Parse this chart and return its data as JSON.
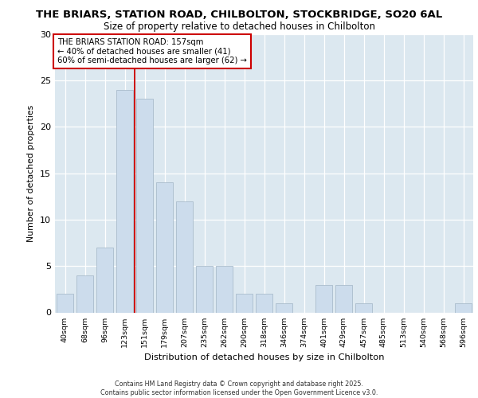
{
  "title_line1": "THE BRIARS, STATION ROAD, CHILBOLTON, STOCKBRIDGE, SO20 6AL",
  "title_line2": "Size of property relative to detached houses in Chilbolton",
  "xlabel": "Distribution of detached houses by size in Chilbolton",
  "ylabel": "Number of detached properties",
  "bar_color": "#ccdcec",
  "bar_edgecolor": "#aabccc",
  "categories": [
    "40sqm",
    "68sqm",
    "96sqm",
    "123sqm",
    "151sqm",
    "179sqm",
    "207sqm",
    "235sqm",
    "262sqm",
    "290sqm",
    "318sqm",
    "346sqm",
    "374sqm",
    "401sqm",
    "429sqm",
    "457sqm",
    "485sqm",
    "513sqm",
    "540sqm",
    "568sqm",
    "596sqm"
  ],
  "values": [
    2,
    4,
    7,
    24,
    23,
    14,
    12,
    5,
    5,
    2,
    2,
    1,
    0,
    3,
    3,
    1,
    0,
    0,
    0,
    0,
    1
  ],
  "ylim": [
    0,
    30
  ],
  "yticks": [
    0,
    5,
    10,
    15,
    20,
    25,
    30
  ],
  "property_bin_index": 4,
  "annotation_title": "THE BRIARS STATION ROAD: 157sqm",
  "annotation_line2": "← 40% of detached houses are smaller (41)",
  "annotation_line3": "60% of semi-detached houses are larger (62) →",
  "vline_color": "#cc0000",
  "annotation_box_color": "#ffffff",
  "annotation_box_edgecolor": "#cc0000",
  "background_color": "#dce8f0",
  "footer_line1": "Contains HM Land Registry data © Crown copyright and database right 2025.",
  "footer_line2": "Contains public sector information licensed under the Open Government Licence v3.0."
}
